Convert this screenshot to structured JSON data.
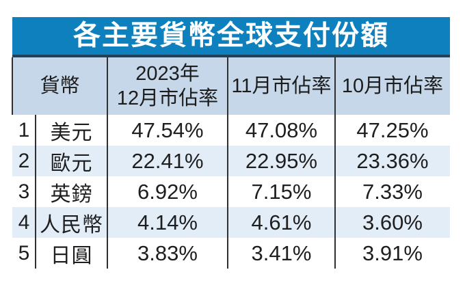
{
  "title": "各主要貨幣全球支付份額",
  "colors": {
    "title_bg": "#0d80bd",
    "title_border": "#20415a",
    "title_text": "#ffffff",
    "header_bg": "#c5d7e9",
    "stripe_bg": "#e3edf8",
    "grid_line": "#2f2f2f",
    "text": "#1e1e1e"
  },
  "table": {
    "headers": {
      "currency": "貨幣",
      "dec_line1": "2023年",
      "dec_line2": "12月市佔率",
      "nov": "11月市佔率",
      "oct": "10月市佔率"
    },
    "rows": [
      {
        "rank": "1",
        "name": "美元",
        "dec": "47.54%",
        "nov": "47.08%",
        "oct": "47.25%"
      },
      {
        "rank": "2",
        "name": "歐元",
        "dec": "22.41%",
        "nov": "22.95%",
        "oct": "23.36%"
      },
      {
        "rank": "3",
        "name": "英鎊",
        "dec": "6.92%",
        "nov": "7.15%",
        "oct": "7.33%"
      },
      {
        "rank": "4",
        "name": "人民幣",
        "dec": "4.14%",
        "nov": "4.61%",
        "oct": "3.60%"
      },
      {
        "rank": "5",
        "name": "日圓",
        "dec": "3.83%",
        "nov": "3.41%",
        "oct": "3.91%"
      }
    ]
  },
  "chart_data": {
    "type": "table",
    "title": "各主要貨幣全球支付份額",
    "columns": [
      "貨幣",
      "2023年12月市佔率",
      "11月市佔率",
      "10月市佔率"
    ],
    "categories": [
      "美元",
      "歐元",
      "英鎊",
      "人民幣",
      "日圓"
    ],
    "series": [
      {
        "name": "2023年12月市佔率",
        "values": [
          47.54,
          22.41,
          6.92,
          4.14,
          3.83
        ]
      },
      {
        "name": "11月市佔率",
        "values": [
          47.08,
          22.95,
          7.15,
          4.61,
          3.41
        ]
      },
      {
        "name": "10月市佔率",
        "values": [
          47.25,
          23.36,
          7.33,
          3.6,
          3.91
        ]
      }
    ],
    "unit": "%",
    "layout": {
      "striped_rows": [
        2,
        4
      ],
      "rank_column": true,
      "grid": "vertical-lines-only"
    }
  }
}
